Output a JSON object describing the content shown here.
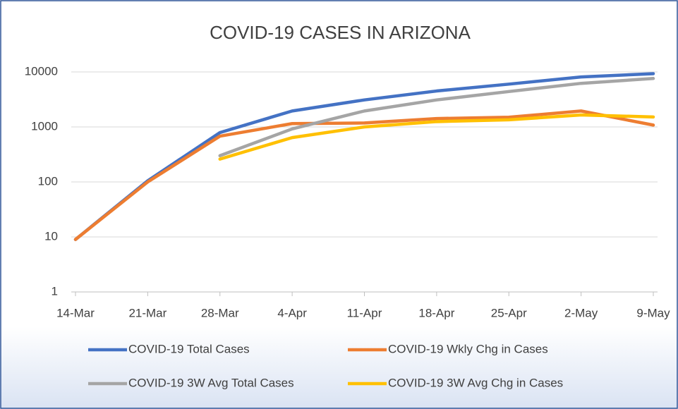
{
  "chart_data": {
    "type": "line",
    "title": "COVID-19 CASES IN ARIZONA",
    "categories": [
      "14-Mar",
      "21-Mar",
      "28-Mar",
      "4-Apr",
      "11-Apr",
      "18-Apr",
      "25-Apr",
      "2-May",
      "9-May"
    ],
    "series": [
      {
        "name": "COVID-19 Total Cases",
        "color": "#4472c4",
        "values": [
          9,
          105,
          790,
          1950,
          3100,
          4500,
          6000,
          8100,
          9300
        ]
      },
      {
        "name": "COVID-19 Wkly Chg in Cases",
        "color": "#ed7d31",
        "values": [
          9,
          100,
          680,
          1150,
          1180,
          1420,
          1500,
          1950,
          1080
        ]
      },
      {
        "name": "COVID-19 3W Avg Total Cases",
        "color": "#a5a5a5",
        "values": [
          null,
          null,
          300,
          920,
          1950,
          3100,
          4400,
          6200,
          7600
        ]
      },
      {
        "name": "COVID-19 3W Avg Chg in Cases",
        "color": "#ffc000",
        "values": [
          null,
          null,
          260,
          640,
          1000,
          1250,
          1350,
          1650,
          1520
        ]
      }
    ],
    "ylim": [
      1,
      10000
    ],
    "yticks": [
      1,
      10,
      100,
      1000,
      10000
    ],
    "log_scale": true,
    "grid": true,
    "legend": "bottom"
  }
}
